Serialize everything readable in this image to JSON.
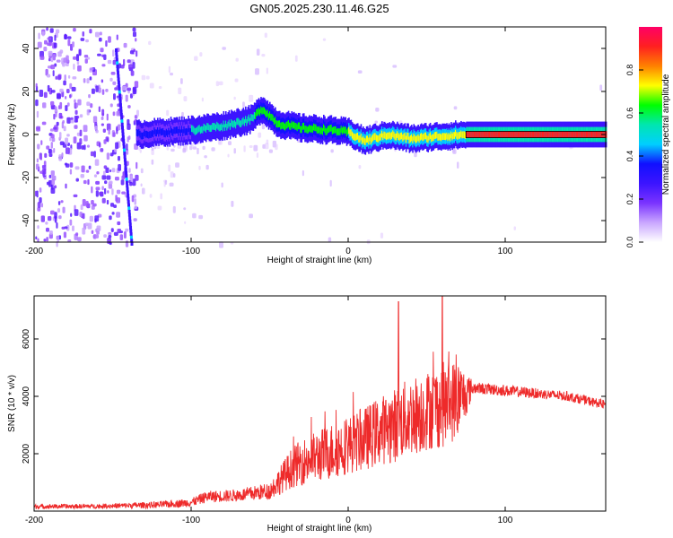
{
  "title": "GN05.2025.230.11.46.G25",
  "chart_data": [
    {
      "type": "heatmap",
      "xlabel": "Height of straight line (km)",
      "ylabel": "Frequency (Hz)",
      "xlim": [
        -200,
        164
      ],
      "ylim": [
        -50,
        50
      ],
      "xticks": [
        -200,
        -100,
        0,
        100
      ],
      "yticks": [
        -40,
        -20,
        0,
        20,
        40
      ],
      "colorbar": {
        "label": "Normalized spectral amplitude",
        "range": [
          0,
          1
        ],
        "ticks": [
          "0.0",
          "0.2",
          "0.4",
          "0.6",
          "0.8"
        ],
        "colormap": [
          "#ffffff",
          "#c9a6ff",
          "#7a33ff",
          "#3c14ff",
          "#1010ff",
          "#00cfff",
          "#00e6b0",
          "#00ff00",
          "#ffff00",
          "#ff8000",
          "#ff2020",
          "#ff0066"
        ]
      },
      "ridge": {
        "x": [
          -135,
          -120,
          -100,
          -80,
          -62,
          -55,
          -45,
          -30,
          -10,
          0,
          10,
          25,
          40,
          55,
          75,
          100,
          130,
          164
        ],
        "freq": [
          0,
          1,
          2,
          4,
          7,
          12,
          5,
          3,
          2,
          1,
          -3,
          0,
          -2,
          -1,
          0,
          0,
          0,
          0
        ]
      },
      "diagonal_streak": {
        "x": [
          -148,
          -138
        ],
        "freq": [
          40,
          -50
        ]
      }
    },
    {
      "type": "line",
      "xlabel": "Height of straight line (km)",
      "ylabel": "SNR (10 * v/v)",
      "xlim": [
        -200,
        164
      ],
      "ylim": [
        0,
        7500
      ],
      "xticks": [
        -200,
        -100,
        0,
        100
      ],
      "yticks": [
        2000,
        4000,
        6000
      ],
      "color": "#ee2a2a",
      "envelope": {
        "x": [
          -200,
          -160,
          -120,
          -100,
          -90,
          -70,
          -50,
          -36,
          -30,
          -20,
          -10,
          0,
          10,
          20,
          30,
          40,
          50,
          60,
          70,
          80,
          100,
          120,
          140,
          164
        ],
        "mean": [
          160,
          170,
          220,
          300,
          500,
          550,
          700,
          1500,
          1700,
          1900,
          2100,
          2300,
          2500,
          2800,
          3000,
          3300,
          3500,
          3700,
          3900,
          4300,
          4200,
          4100,
          4000,
          3700
        ],
        "noise": [
          80,
          80,
          120,
          150,
          200,
          220,
          300,
          700,
          800,
          900,
          1000,
          1000,
          1100,
          1200,
          1300,
          1400,
          1400,
          1500,
          1400,
          200,
          200,
          180,
          170,
          160
        ]
      },
      "peaks": [
        {
          "x": 32,
          "y": 7300
        },
        {
          "x": 60,
          "y": 7500
        }
      ]
    }
  ]
}
